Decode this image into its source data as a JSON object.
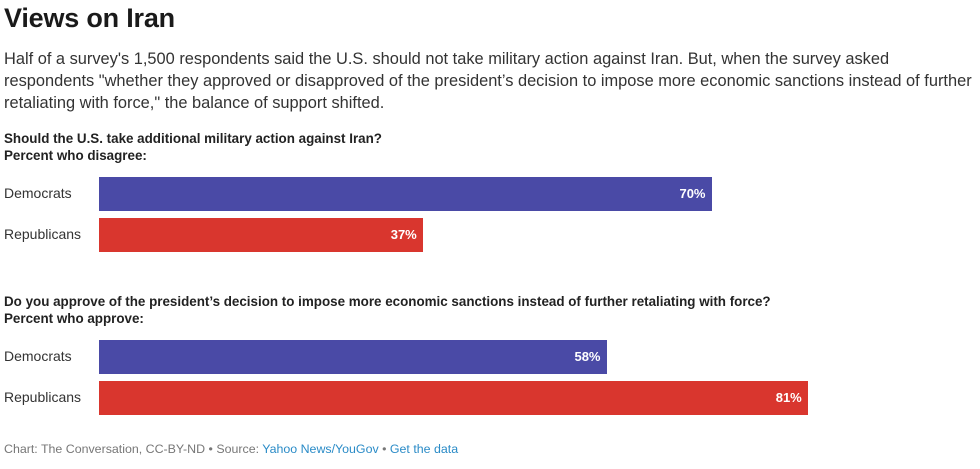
{
  "chart_data": {
    "type": "bar",
    "orientation": "horizontal",
    "title": "Views on Iran",
    "subtitle": "Half of a survey's 1,500 respondents said the U.S. should not take military action against Iran. But, when the survey asked respondents \"whether they approved or disapproved of the president’s decision to impose more economic sanctions instead of further retaliating with force,\" the balance of support shifted.",
    "xlim": [
      0,
      100
    ],
    "grid": false,
    "groups": [
      {
        "question": "Should the U.S. take additional military action against Iran?",
        "measure": "Percent who disagree:",
        "categories": [
          "Democrats",
          "Republicans"
        ],
        "values": [
          70,
          37
        ],
        "value_labels": [
          "70%",
          "37%"
        ],
        "colors": [
          "#4a4aa6",
          "#d9362e"
        ]
      },
      {
        "question": "Do you approve of the president’s decision to impose more economic sanctions instead of further retaliating with force?",
        "measure": "Percent who approve:",
        "categories": [
          "Democrats",
          "Republicans"
        ],
        "values": [
          58,
          81
        ],
        "value_labels": [
          "58%",
          "81%"
        ],
        "colors": [
          "#4a4aa6",
          "#d9362e"
        ]
      }
    ]
  },
  "footer": {
    "credit": "Chart: The Conversation, CC-BY-ND",
    "separator": " • ",
    "source_prefix": "Source: ",
    "source_link": "Yahoo News/YouGov",
    "data_link": "Get the data"
  }
}
